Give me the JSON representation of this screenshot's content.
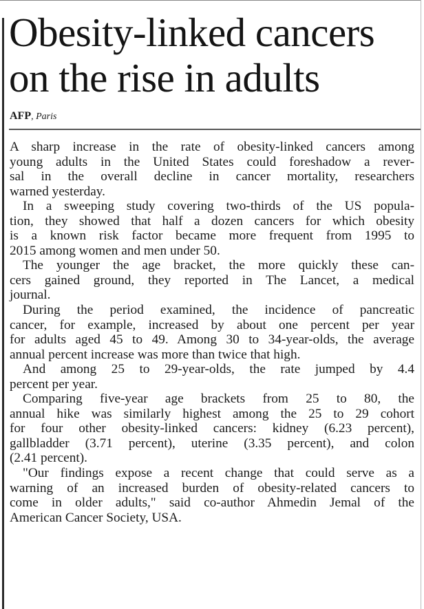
{
  "article": {
    "headline": [
      "Obesity-linked cancers",
      "on the rise in adults"
    ],
    "byline": {
      "agency": "AFP",
      "place": "Paris"
    },
    "paragraphs": [
      [
        "A sharp increase in the rate of obesity-linked cancers among",
        "young adults in the United States could foreshadow a rever-",
        "sal in the overall decline in cancer mortality, researchers",
        "warned yesterday."
      ],
      [
        "In a sweeping study covering two-thirds of the US popula-",
        "tion, they showed that half a dozen cancers for which obesity",
        "is a known risk factor became more frequent from 1995 to",
        "2015 among women and men under 50."
      ],
      [
        "The younger the age bracket, the more quickly these can-",
        "cers gained ground, they reported in The Lancet, a medical",
        "journal."
      ],
      [
        "During the period examined, the incidence of pancreatic",
        "cancer, for example, increased by about one percent per year",
        "for adults aged 45 to 49. Among 30 to 34-year-olds, the average",
        "annual percent increase was more than twice that high."
      ],
      [
        "And among 25 to 29-year-olds, the rate jumped by 4.4",
        "percent per year."
      ],
      [
        "Comparing five-year age brackets from 25 to 80, the",
        "annual hike was similarly highest among the 25 to 29 cohort",
        "for four other obesity-linked cancers: kidney (6.23 percent),",
        "gallbladder (3.71 percent), uterine (3.35 percent), and colon",
        "(2.41 percent)."
      ],
      [
        "\"Our findings expose a recent change that could serve as a",
        "warning of an increased burden of obesity-related cancers to",
        "come in older adults,\" said co-author Ahmedin Jemal of the",
        "American Cancer Society, USA."
      ]
    ]
  }
}
